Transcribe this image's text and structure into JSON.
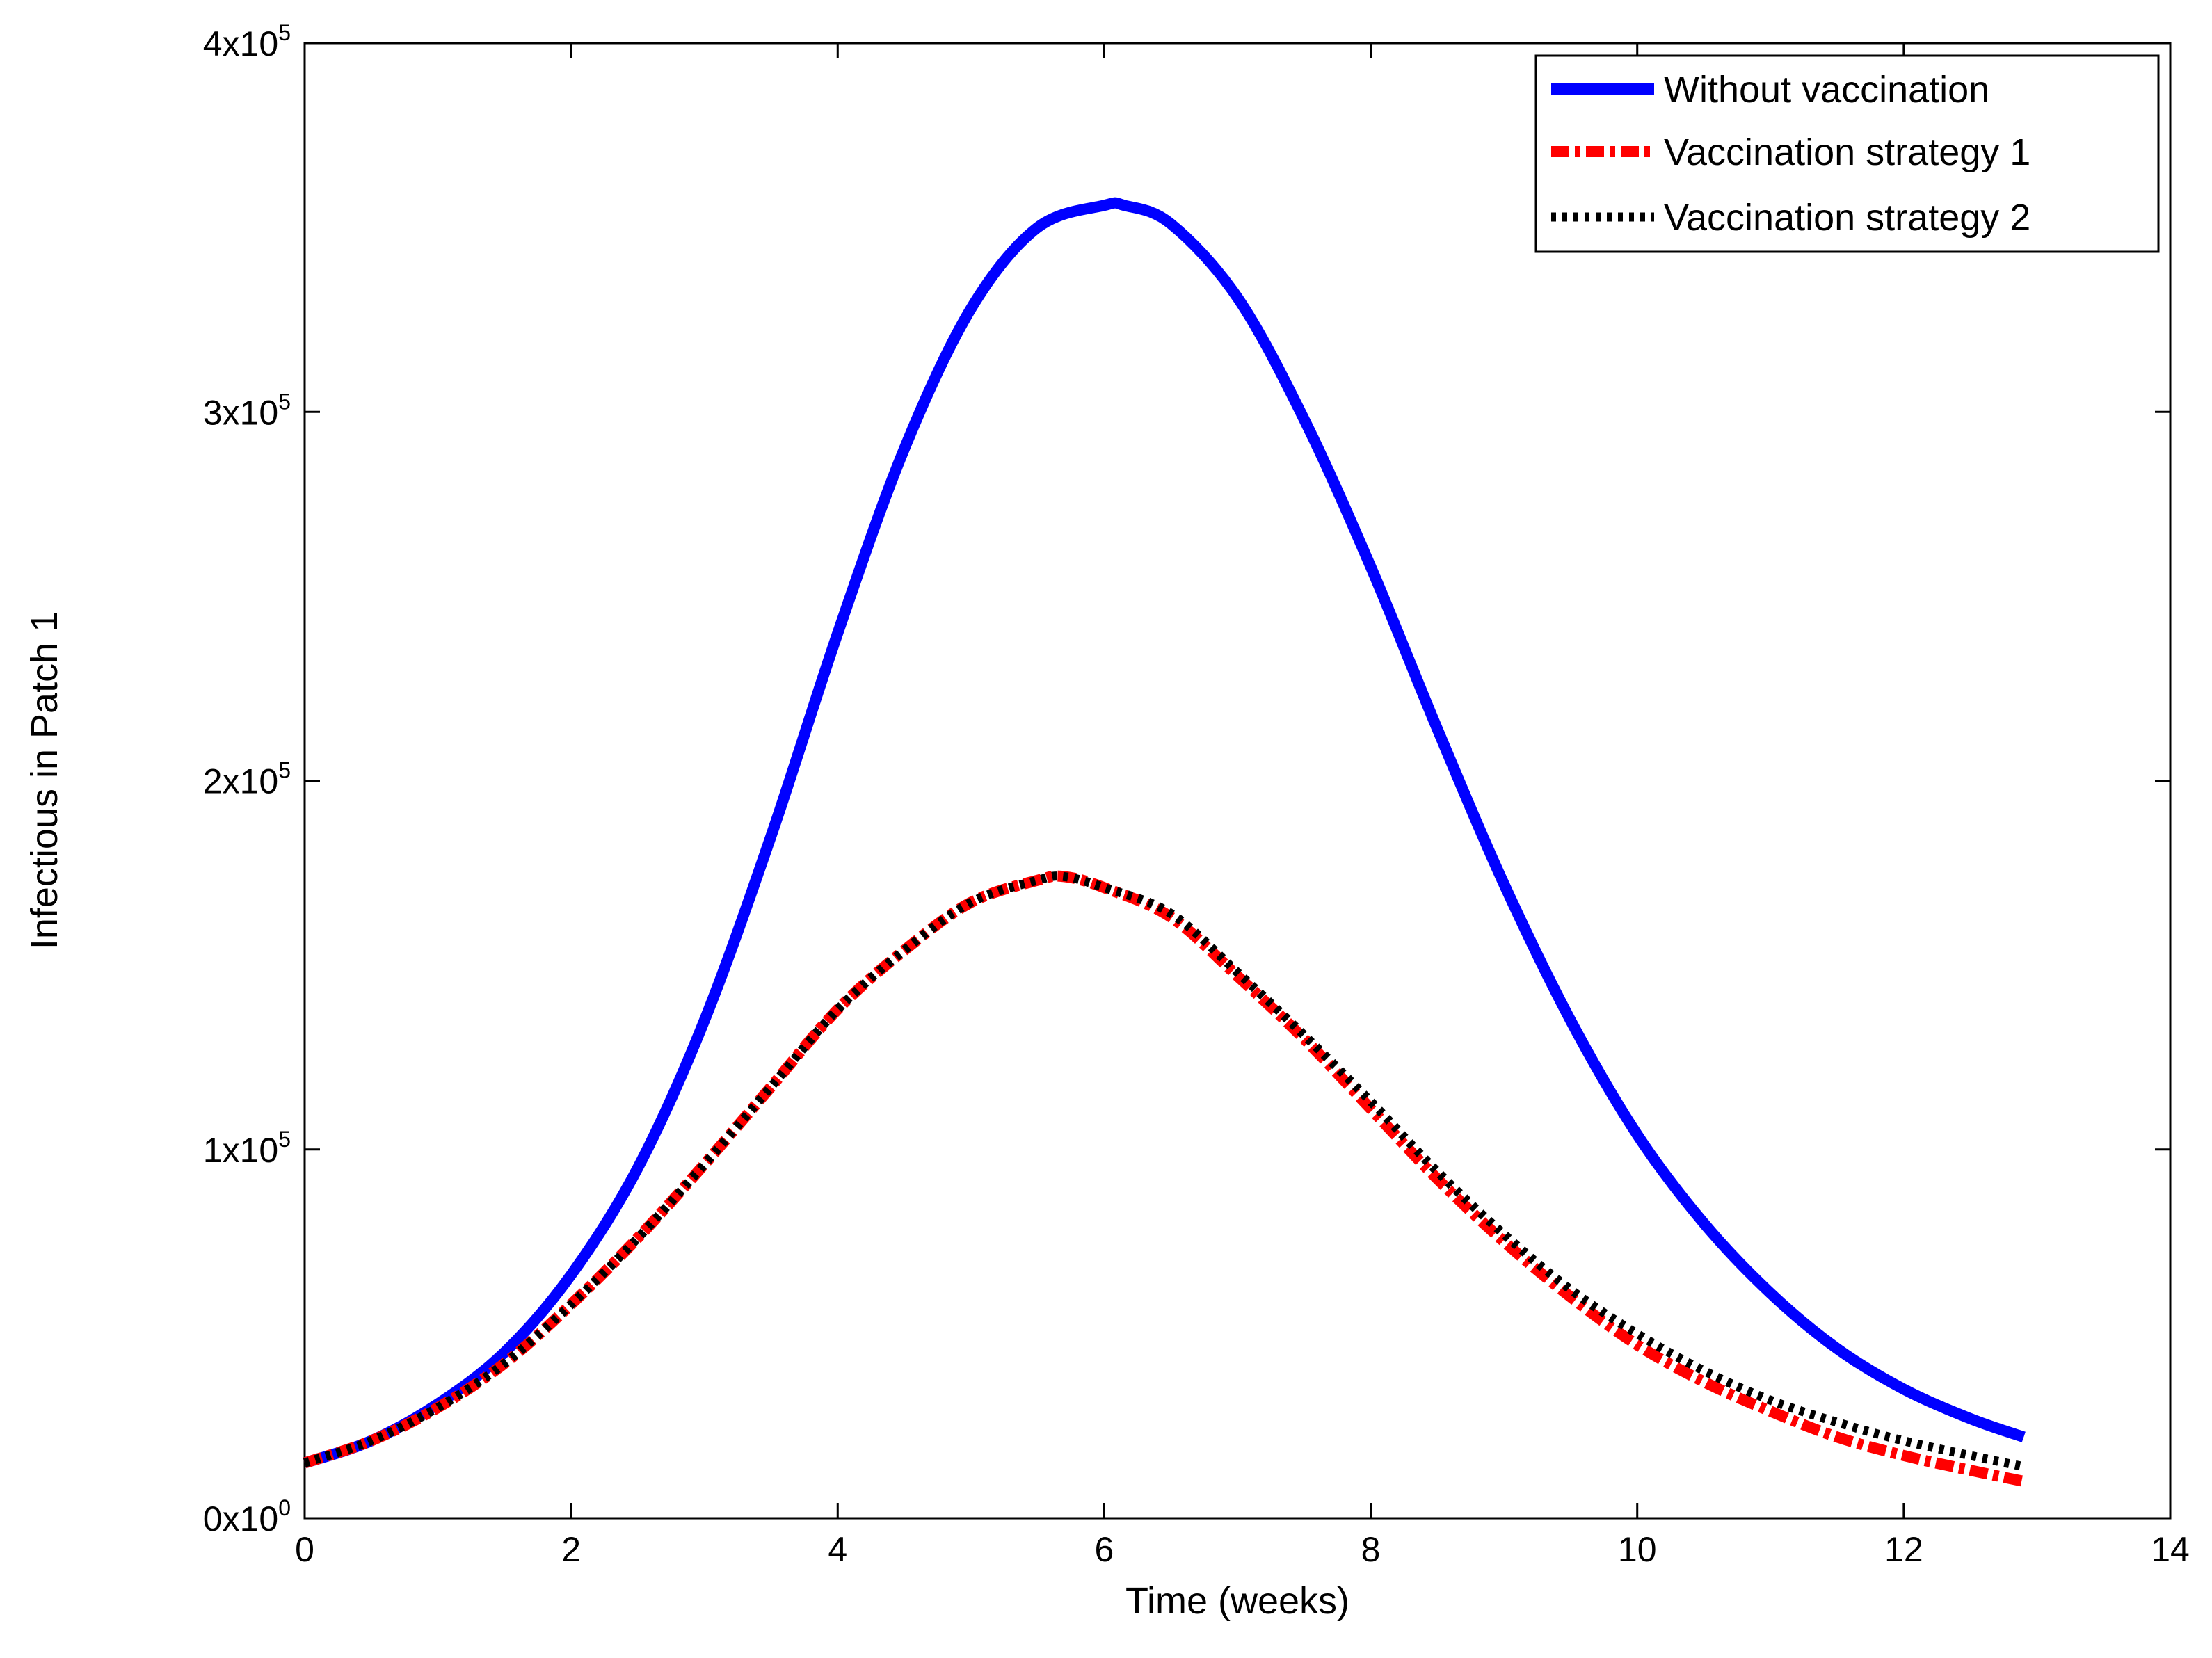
{
  "chart_data": {
    "type": "line",
    "title": "",
    "xlabel": "Time (weeks)",
    "ylabel": "Infectious in Patch 1",
    "xlim": [
      0,
      14
    ],
    "ylim": [
      0,
      400000
    ],
    "xticks": [
      0,
      2,
      4,
      6,
      8,
      10,
      12,
      14
    ],
    "xtick_labels": [
      "0",
      "2",
      "4",
      "6",
      "8",
      "10",
      "12",
      "14"
    ],
    "yticks": [
      0,
      100000,
      200000,
      300000,
      400000
    ],
    "ytick_labels": [
      {
        "mantissa": "0x10",
        "exp": "0"
      },
      {
        "mantissa": "1x10",
        "exp": "5"
      },
      {
        "mantissa": "2x10",
        "exp": "5"
      },
      {
        "mantissa": "3x10",
        "exp": "5"
      },
      {
        "mantissa": "4x10",
        "exp": "5"
      }
    ],
    "grid": false,
    "legend_position": "top-right",
    "series": [
      {
        "name": "Without vaccination",
        "color": "#0000ff",
        "style": "solid",
        "x": [
          0,
          0.5,
          1,
          1.5,
          2,
          2.5,
          3,
          3.5,
          4,
          4.5,
          5,
          5.5,
          6,
          6.15,
          6.5,
          7,
          7.5,
          8,
          8.5,
          9,
          9.5,
          10,
          10.5,
          11,
          11.5,
          12,
          12.5,
          12.9
        ],
        "y": [
          15000,
          21000,
          31000,
          45000,
          66000,
          95000,
          135000,
          185000,
          240000,
          290000,
          328000,
          350000,
          356000,
          356000,
          351000,
          331000,
          298000,
          258000,
          214000,
          172000,
          135000,
          104000,
          80000,
          61000,
          46000,
          35000,
          27000,
          22000
        ]
      },
      {
        "name": "Vaccination strategy 1",
        "color": "#ff0000",
        "style": "dash-dot",
        "x": [
          0,
          0.5,
          1,
          1.5,
          2,
          2.5,
          3,
          3.5,
          4,
          4.5,
          5,
          5.5,
          5.7,
          6,
          6.5,
          7,
          7.5,
          8,
          8.5,
          9,
          9.5,
          10,
          10.5,
          11,
          11.5,
          12,
          12.5,
          12.9
        ],
        "y": [
          15000,
          21000,
          30000,
          42000,
          58000,
          76000,
          96000,
          117000,
          138000,
          154000,
          167000,
          173000,
          174000,
          171000,
          163000,
          147000,
          130000,
          111000,
          92000,
          75000,
          60000,
          47000,
          37000,
          29000,
          22000,
          17000,
          13000,
          10000
        ]
      },
      {
        "name": "Vaccination strategy 2",
        "color": "#000000",
        "style": "dotted",
        "x": [
          0,
          0.5,
          1,
          1.5,
          2,
          2.5,
          3,
          3.5,
          4,
          4.5,
          5,
          5.5,
          5.7,
          6,
          6.5,
          7,
          7.5,
          8,
          8.5,
          9,
          9.5,
          10,
          10.5,
          11,
          11.5,
          12,
          12.5,
          12.9
        ],
        "y": [
          15000,
          21000,
          30000,
          42000,
          58000,
          76000,
          96000,
          117000,
          138000,
          154000,
          167000,
          173000,
          174000,
          171000,
          164000,
          148000,
          131000,
          113000,
          94000,
          77000,
          62000,
          50000,
          40000,
          32000,
          26000,
          21000,
          17000,
          14000
        ]
      }
    ]
  }
}
